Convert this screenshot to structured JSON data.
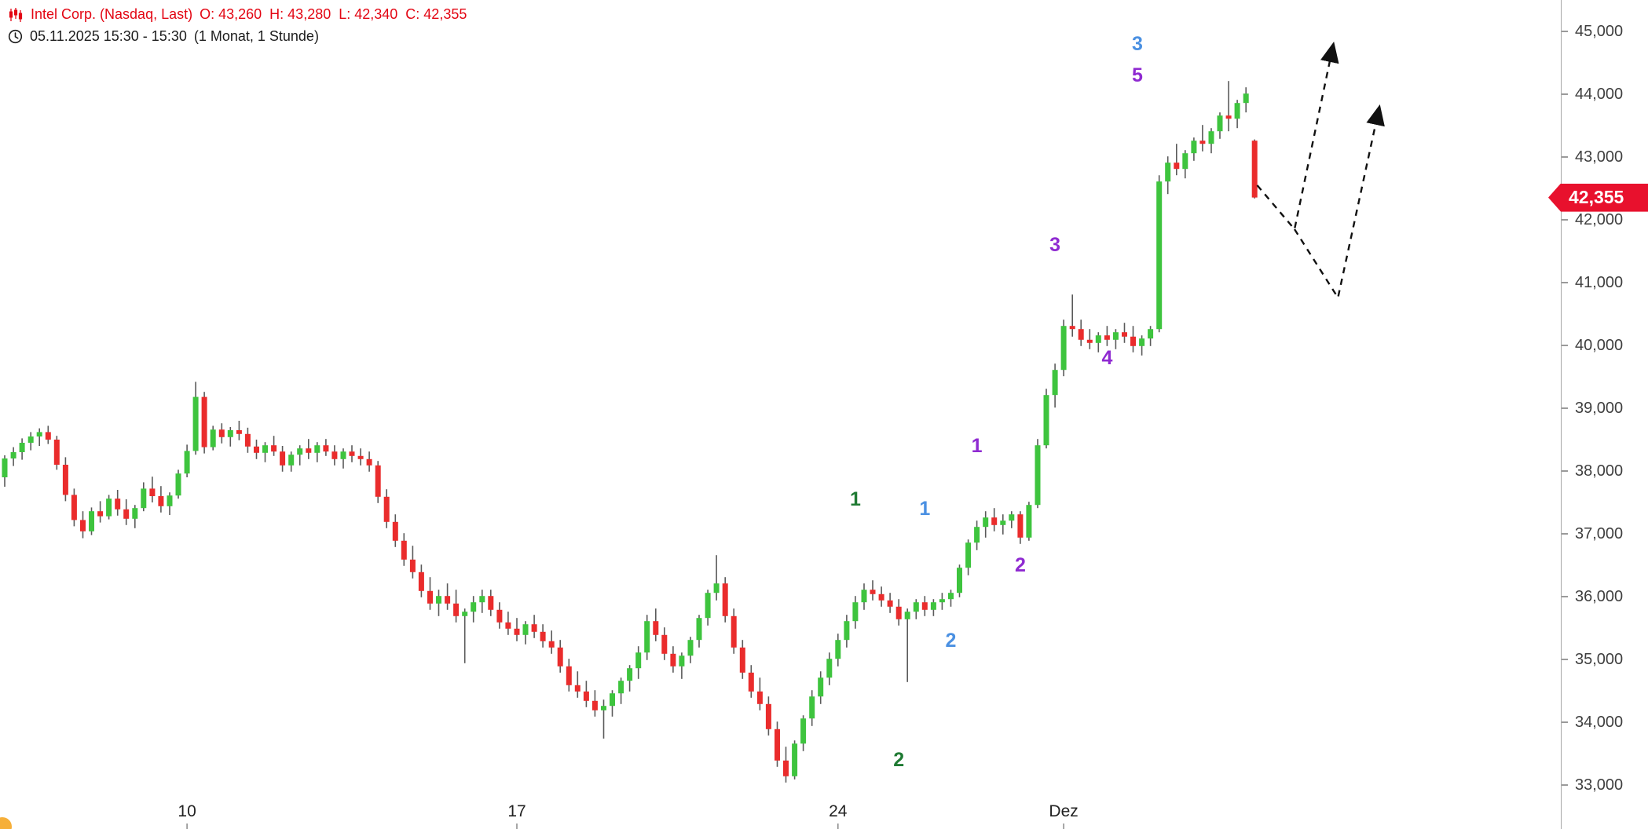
{
  "header": {
    "symbol_line": "Intel Corp. (Nasdaq, Last)",
    "ohlc": "O: 43,260  H: 43,280  L: 42,340  C: 42,355",
    "time_line": "05.11.2025 15:30 - 15:30",
    "interval_line": "(1 Monat, 1 Stunde)"
  },
  "price_tag": {
    "label": "42,355",
    "value": 42355
  },
  "chart_data": {
    "type": "candlestick",
    "title": "Intel Corp. (Nasdaq, Last)",
    "xlabel": "",
    "ylabel": "",
    "ylim": [
      32300,
      45500
    ],
    "grid": false,
    "y_ticks": [
      45000,
      44000,
      43000,
      42000,
      41000,
      40000,
      39000,
      38000,
      37000,
      36000,
      35000,
      34000,
      33000
    ],
    "y_tick_labels": [
      "45,000",
      "44,000",
      "43,000",
      "42,000",
      "41,000",
      "40,000",
      "39,000",
      "38,000",
      "37,000",
      "36,000",
      "35,000",
      "34,000",
      "33,000"
    ],
    "x_ticks": [
      {
        "index": 21,
        "label": "10"
      },
      {
        "index": 59,
        "label": "17"
      },
      {
        "index": 96,
        "label": "24"
      },
      {
        "index": 122,
        "label": "Dez"
      }
    ],
    "candles": [
      [
        37900,
        38250,
        37750,
        38200
      ],
      [
        38200,
        38380,
        38080,
        38300
      ],
      [
        38300,
        38520,
        38180,
        38450
      ],
      [
        38450,
        38620,
        38330,
        38550
      ],
      [
        38550,
        38680,
        38400,
        38620
      ],
      [
        38620,
        38720,
        38430,
        38500
      ],
      [
        38500,
        38560,
        38020,
        38100
      ],
      [
        38100,
        38220,
        37520,
        37620
      ],
      [
        37620,
        37720,
        37120,
        37220
      ],
      [
        37220,
        37360,
        36930,
        37040
      ],
      [
        37040,
        37420,
        36980,
        37360
      ],
      [
        37360,
        37520,
        37180,
        37280
      ],
      [
        37280,
        37620,
        37230,
        37560
      ],
      [
        37560,
        37700,
        37290,
        37390
      ],
      [
        37390,
        37550,
        37140,
        37240
      ],
      [
        37240,
        37460,
        37090,
        37410
      ],
      [
        37410,
        37820,
        37360,
        37720
      ],
      [
        37720,
        37910,
        37500,
        37600
      ],
      [
        37600,
        37760,
        37340,
        37440
      ],
      [
        37440,
        37660,
        37300,
        37610
      ],
      [
        37610,
        38020,
        37560,
        37960
      ],
      [
        37960,
        38420,
        37900,
        38320
      ],
      [
        38320,
        39420,
        38260,
        39180
      ],
      [
        39180,
        39260,
        38280,
        38380
      ],
      [
        38380,
        38720,
        38330,
        38660
      ],
      [
        38660,
        38760,
        38440,
        38540
      ],
      [
        38540,
        38700,
        38390,
        38650
      ],
      [
        38650,
        38800,
        38490,
        38590
      ],
      [
        38590,
        38690,
        38290,
        38390
      ],
      [
        38390,
        38500,
        38190,
        38290
      ],
      [
        38290,
        38460,
        38140,
        38410
      ],
      [
        38410,
        38560,
        38240,
        38310
      ],
      [
        38310,
        38400,
        37990,
        38090
      ],
      [
        38090,
        38310,
        37990,
        38260
      ],
      [
        38260,
        38410,
        38090,
        38360
      ],
      [
        38360,
        38510,
        38190,
        38290
      ],
      [
        38290,
        38460,
        38140,
        38410
      ],
      [
        38410,
        38510,
        38240,
        38310
      ],
      [
        38310,
        38410,
        38090,
        38190
      ],
      [
        38190,
        38360,
        38040,
        38310
      ],
      [
        38310,
        38410,
        38140,
        38240
      ],
      [
        38240,
        38360,
        38090,
        38190
      ],
      [
        38190,
        38310,
        37990,
        38090
      ],
      [
        38090,
        38160,
        37490,
        37590
      ],
      [
        37590,
        37710,
        37090,
        37190
      ],
      [
        37190,
        37310,
        36790,
        36890
      ],
      [
        36890,
        37010,
        36490,
        36590
      ],
      [
        36590,
        36810,
        36290,
        36390
      ],
      [
        36390,
        36510,
        35990,
        36090
      ],
      [
        36090,
        36310,
        35790,
        35890
      ],
      [
        35890,
        36110,
        35690,
        36010
      ],
      [
        36010,
        36210,
        35790,
        35890
      ],
      [
        35890,
        36110,
        35590,
        35690
      ],
      [
        35690,
        35810,
        34940,
        35760
      ],
      [
        35760,
        36010,
        35590,
        35910
      ],
      [
        35910,
        36110,
        35740,
        36010
      ],
      [
        36010,
        36110,
        35690,
        35790
      ],
      [
        35790,
        35910,
        35490,
        35590
      ],
      [
        35590,
        35760,
        35390,
        35490
      ],
      [
        35490,
        35660,
        35290,
        35390
      ],
      [
        35390,
        35610,
        35240,
        35560
      ],
      [
        35560,
        35710,
        35340,
        35440
      ],
      [
        35440,
        35560,
        35190,
        35290
      ],
      [
        35290,
        35460,
        35090,
        35190
      ],
      [
        35190,
        35310,
        34790,
        34890
      ],
      [
        34890,
        35010,
        34490,
        34590
      ],
      [
        34590,
        34810,
        34390,
        34490
      ],
      [
        34490,
        34660,
        34240,
        34340
      ],
      [
        34340,
        34510,
        34090,
        34190
      ],
      [
        34190,
        34360,
        33740,
        34260
      ],
      [
        34260,
        34510,
        34090,
        34460
      ],
      [
        34460,
        34710,
        34290,
        34660
      ],
      [
        34660,
        34910,
        34490,
        34860
      ],
      [
        34860,
        35210,
        34690,
        35110
      ],
      [
        35110,
        35710,
        34990,
        35610
      ],
      [
        35610,
        35810,
        35290,
        35390
      ],
      [
        35390,
        35510,
        34990,
        35090
      ],
      [
        35090,
        35210,
        34790,
        34890
      ],
      [
        34890,
        35110,
        34690,
        35060
      ],
      [
        35060,
        35360,
        34940,
        35310
      ],
      [
        35310,
        35710,
        35190,
        35660
      ],
      [
        35660,
        36110,
        35540,
        36060
      ],
      [
        36060,
        36660,
        35940,
        36210
      ],
      [
        36210,
        36310,
        35590,
        35690
      ],
      [
        35690,
        35810,
        35090,
        35190
      ],
      [
        35190,
        35310,
        34690,
        34790
      ],
      [
        34790,
        34910,
        34390,
        34490
      ],
      [
        34490,
        34710,
        34190,
        34290
      ],
      [
        34290,
        34410,
        33790,
        33890
      ],
      [
        33890,
        34010,
        33290,
        33390
      ],
      [
        33390,
        33610,
        33040,
        33140
      ],
      [
        33140,
        33710,
        33090,
        33660
      ],
      [
        33660,
        34110,
        33540,
        34060
      ],
      [
        34060,
        34510,
        33940,
        34410
      ],
      [
        34410,
        34810,
        34290,
        34710
      ],
      [
        34710,
        35110,
        34590,
        35010
      ],
      [
        35010,
        35410,
        34890,
        35310
      ],
      [
        35310,
        35710,
        35190,
        35610
      ],
      [
        35610,
        36010,
        35490,
        35910
      ],
      [
        35910,
        36210,
        35790,
        36110
      ],
      [
        36110,
        36260,
        35940,
        36040
      ],
      [
        36040,
        36160,
        35840,
        35940
      ],
      [
        35940,
        36060,
        35740,
        35840
      ],
      [
        35840,
        35960,
        35540,
        35640
      ],
      [
        35640,
        35810,
        34640,
        35760
      ],
      [
        35760,
        35960,
        35640,
        35910
      ],
      [
        35910,
        36010,
        35690,
        35790
      ],
      [
        35790,
        35960,
        35690,
        35910
      ],
      [
        35910,
        36060,
        35790,
        35960
      ],
      [
        35960,
        36110,
        35840,
        36060
      ],
      [
        36060,
        36510,
        35990,
        36460
      ],
      [
        36460,
        36910,
        36340,
        36860
      ],
      [
        36860,
        37210,
        36740,
        37110
      ],
      [
        37110,
        37360,
        36940,
        37260
      ],
      [
        37260,
        37410,
        37040,
        37140
      ],
      [
        37140,
        37310,
        36990,
        37210
      ],
      [
        37210,
        37360,
        37090,
        37310
      ],
      [
        37310,
        37360,
        36840,
        36940
      ],
      [
        36940,
        37510,
        36890,
        37460
      ],
      [
        37460,
        38510,
        37410,
        38410
      ],
      [
        38410,
        39310,
        38360,
        39210
      ],
      [
        39210,
        39710,
        39010,
        39610
      ],
      [
        39610,
        40410,
        39510,
        40310
      ],
      [
        40310,
        40810,
        40140,
        40260
      ],
      [
        40260,
        40410,
        39990,
        40090
      ],
      [
        40090,
        40260,
        39940,
        40040
      ],
      [
        40040,
        40210,
        39890,
        40160
      ],
      [
        40160,
        40310,
        39990,
        40090
      ],
      [
        40090,
        40260,
        39940,
        40210
      ],
      [
        40210,
        40360,
        40040,
        40140
      ],
      [
        40140,
        40310,
        39890,
        39990
      ],
      [
        39990,
        40160,
        39840,
        40110
      ],
      [
        40110,
        40310,
        39990,
        40260
      ],
      [
        40260,
        42710,
        40210,
        42610
      ],
      [
        42610,
        43010,
        42410,
        42910
      ],
      [
        42910,
        43210,
        42710,
        42810
      ],
      [
        42810,
        43110,
        42660,
        43060
      ],
      [
        43060,
        43310,
        42940,
        43260
      ],
      [
        43260,
        43510,
        43090,
        43210
      ],
      [
        43210,
        43460,
        43060,
        43410
      ],
      [
        43410,
        43710,
        43290,
        43660
      ],
      [
        43660,
        44210,
        43410,
        43610
      ],
      [
        43610,
        43910,
        43460,
        43860
      ],
      [
        43860,
        44110,
        43710,
        44010
      ],
      [
        43260,
        43280,
        42340,
        42355
      ]
    ],
    "annotations": [
      {
        "text": "1",
        "color": "#1f7a33",
        "index": 98,
        "price": 37550
      },
      {
        "text": "2",
        "color": "#1f7a33",
        "index": 103,
        "price": 33400
      },
      {
        "text": "1",
        "color": "#4a90e2",
        "index": 106,
        "price": 37400
      },
      {
        "text": "2",
        "color": "#4a90e2",
        "index": 109,
        "price": 35300
      },
      {
        "text": "1",
        "color": "#8f2ad1",
        "index": 112,
        "price": 38400
      },
      {
        "text": "2",
        "color": "#8f2ad1",
        "index": 117,
        "price": 36500
      },
      {
        "text": "3",
        "color": "#8f2ad1",
        "index": 121,
        "price": 41600
      },
      {
        "text": "4",
        "color": "#8f2ad1",
        "index": 127,
        "price": 39800
      },
      {
        "text": "5",
        "color": "#8f2ad1",
        "index": 130.5,
        "price": 44300
      },
      {
        "text": "3",
        "color": "#4a90e2",
        "index": 130.5,
        "price": 44800
      }
    ],
    "projections": [
      {
        "points": [
          [
            144.3,
            42550
          ],
          [
            148.6,
            41850
          ],
          [
            153.0,
            44750
          ]
        ]
      },
      {
        "points": [
          [
            148.6,
            41850
          ],
          [
            153.6,
            40760
          ],
          [
            158.3,
            43750
          ]
        ]
      }
    ],
    "colors": {
      "up": "#3ec43e",
      "down": "#ea2c2c",
      "wick": "#5a5a5a",
      "projection": "#111111",
      "axis_text": "#3f3f3f",
      "x_axis_text": "#222222",
      "tag_bg": "#e8112d",
      "tag_text": "#ffffff",
      "title_red": "#e30613"
    }
  }
}
